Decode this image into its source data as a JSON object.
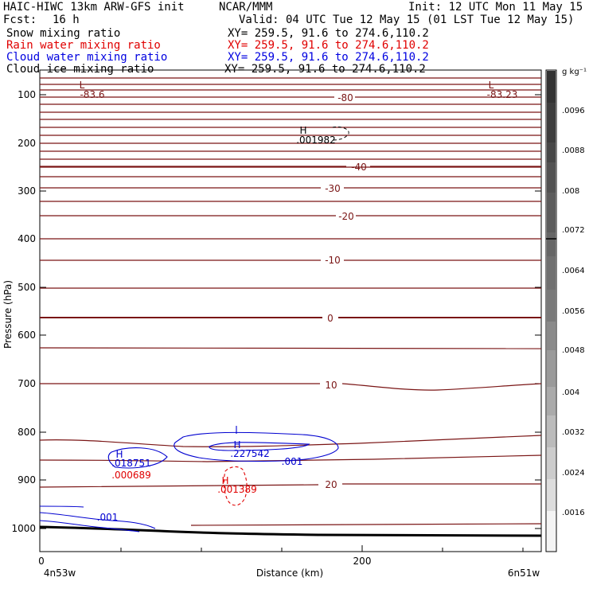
{
  "header": {
    "title_left": "HAIC-HIWC 13km ARW-GFS init",
    "title_mid": "NCAR/MMM",
    "init": "Init: 12 UTC Mon 11 May 15",
    "fcst_label": "Fcst:",
    "fcst_value": "16 h",
    "valid": "Valid: 04 UTC Tue 12 May 15 (01 LST Tue 12 May 15)",
    "fields": [
      {
        "name": "Snow mixing ratio",
        "xy": "XY= 259.5, 91.6 to 274.6,110.2",
        "color": "#000000"
      },
      {
        "name": "Rain water mixing ratio",
        "xy": "XY= 259.5, 91.6 to 274.6,110.2",
        "color": "#e00000"
      },
      {
        "name": "Cloud water mixing ratio",
        "xy": "XY= 259.5, 91.6 to 274.6,110.2",
        "color": "#0000e0"
      },
      {
        "name": "Cloud ice mixing ratio",
        "xy": "XY= 259.5, 91.6 to 274.6,110.2",
        "color": "#000000"
      }
    ]
  },
  "chart_data": {
    "type": "contour",
    "ylabel": "Pressure (hPa)",
    "xlabel": "Distance (km)",
    "x_ticks": [
      0,
      200
    ],
    "y_ticks": [
      100,
      200,
      300,
      400,
      500,
      600,
      700,
      800,
      900,
      1000
    ],
    "x_range": [
      0,
      311
    ],
    "y_range": [
      50,
      1050
    ],
    "left_endpoint": "4n53w",
    "right_endpoint": "6n51w",
    "colorbar": {
      "unit": "g kg⁻¹",
      "ticks": [
        ".0016",
        ".0024",
        ".0032",
        ".004",
        ".0048",
        ".0056",
        ".0064",
        ".0072",
        ".008",
        ".0088",
        ".0096"
      ]
    },
    "temperature_labels": [
      "-80",
      "-40",
      "-30",
      "-20",
      "-10",
      "0",
      "10",
      "20"
    ],
    "extrema": [
      {
        "type": "L",
        "value": "-83.6",
        "color": "#8b1a1a"
      },
      {
        "type": "L",
        "value": "-83.23",
        "color": "#8b1a1a"
      },
      {
        "type": "H",
        "value": ".001982",
        "color": "#000000"
      },
      {
        "type": "H",
        "value": ".018751",
        "color": "#0000e0"
      },
      {
        "type": "H",
        "value": ".227542",
        "color": "#0000e0"
      },
      {
        "type": "H",
        "value": ".000689",
        "color": "#e00000"
      },
      {
        "type": "H",
        "value": ".001389",
        "color": "#e00000"
      }
    ],
    "cloud_water_contour_labels": [
      ".001",
      ".001"
    ]
  }
}
